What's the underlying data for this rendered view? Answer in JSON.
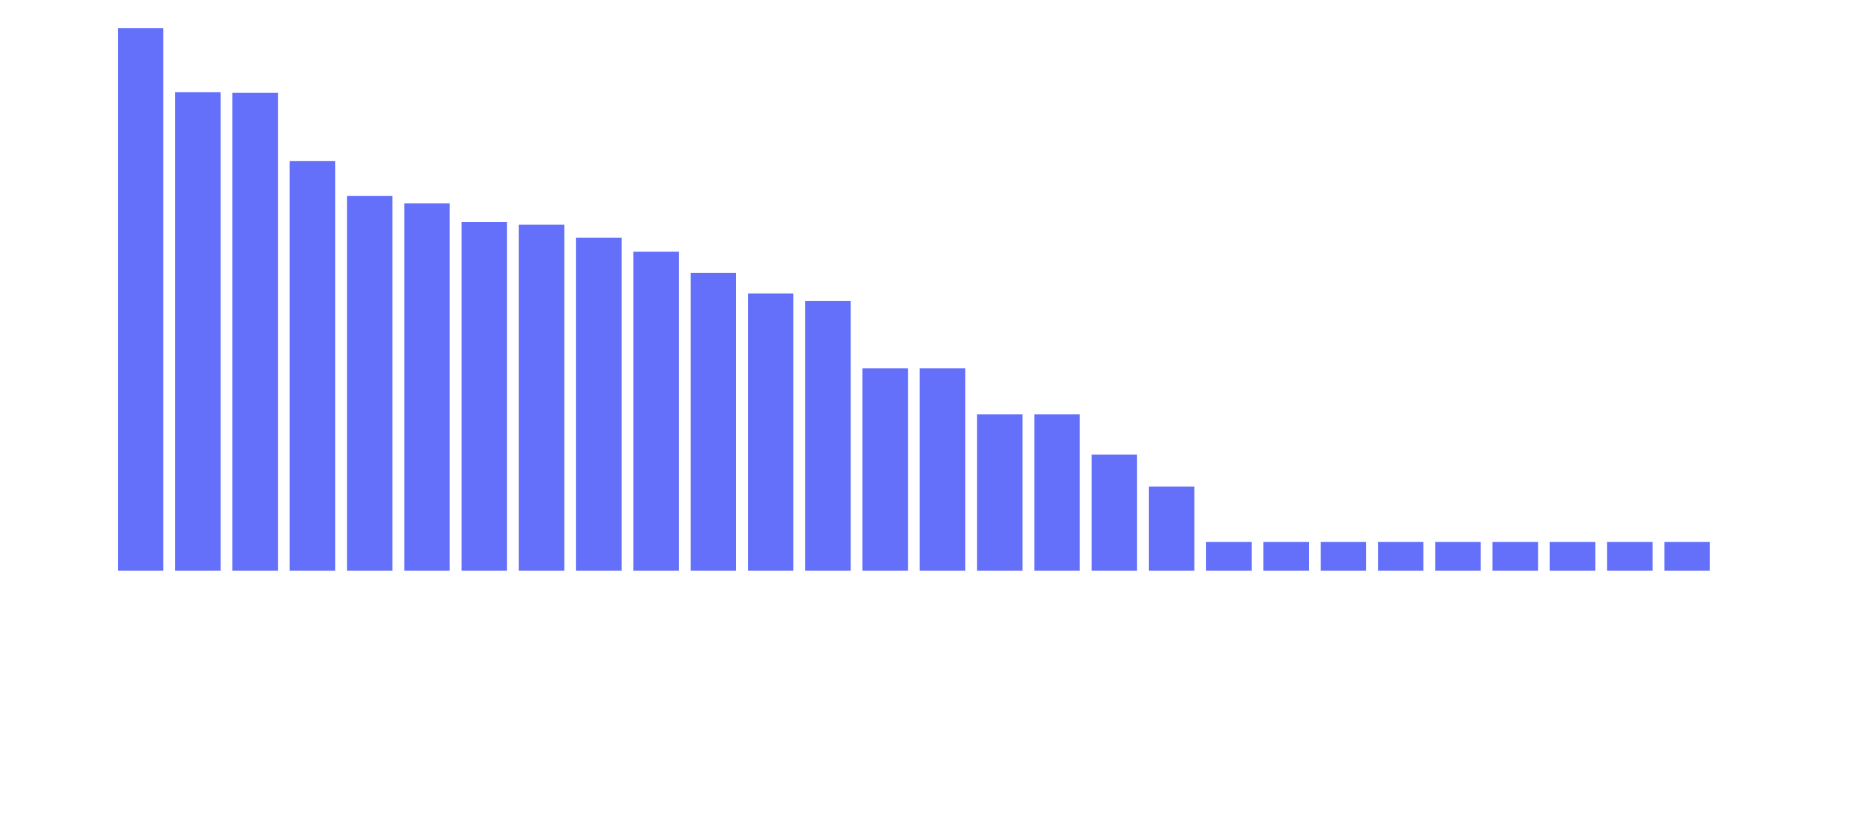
{
  "chart_data": {
    "type": "bar",
    "title": "",
    "xlabel": "",
    "ylabel": "",
    "ylim": [
      0,
      100
    ],
    "grid": false,
    "legend": "none",
    "bar_color": "#6470fa",
    "values": [
      100,
      88.2,
      88.1,
      75.5,
      69.1,
      67.7,
      64.3,
      63.8,
      61.4,
      58.8,
      54.9,
      51.1,
      49.7,
      37.3,
      37.3,
      28.8,
      28.8,
      21.4,
      15.5,
      5.3,
      5.3,
      5.3,
      5.3,
      5.3,
      5.3,
      5.3,
      5.3,
      5.3
    ]
  }
}
